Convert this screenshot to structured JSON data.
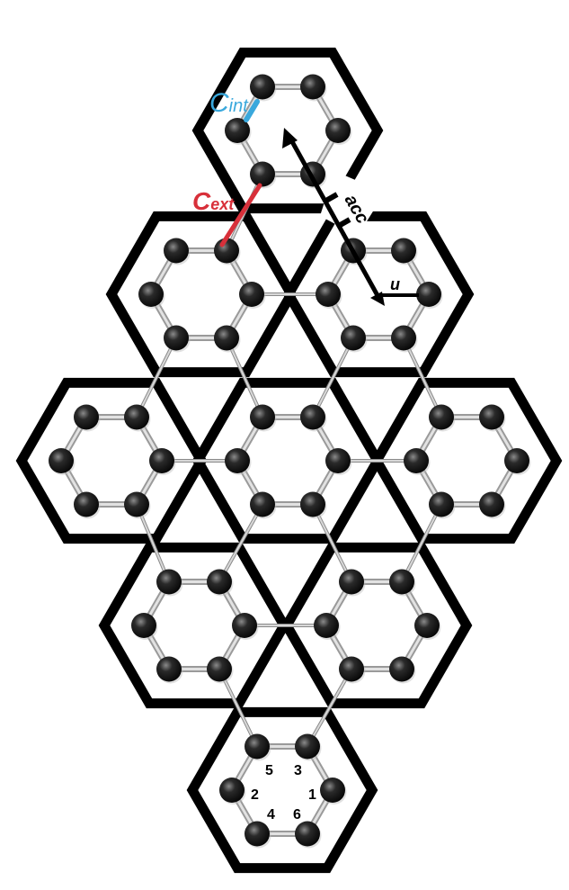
{
  "labels": {
    "c_int_letter": "C",
    "c_int_sub": "int",
    "c_ext_letter": "C",
    "c_ext_sub": "ext",
    "acc": "acc",
    "u": "u"
  },
  "site_numbers": [
    "1",
    "2",
    "3",
    "4",
    "5",
    "6"
  ],
  "colors": {
    "hexagon_stroke": "#000000",
    "atom": "#1a1a1a",
    "bond": "#c8c8c8",
    "c_int": "#3aa8dc",
    "c_ext": "#d8303a",
    "arrow": "#000000"
  }
}
